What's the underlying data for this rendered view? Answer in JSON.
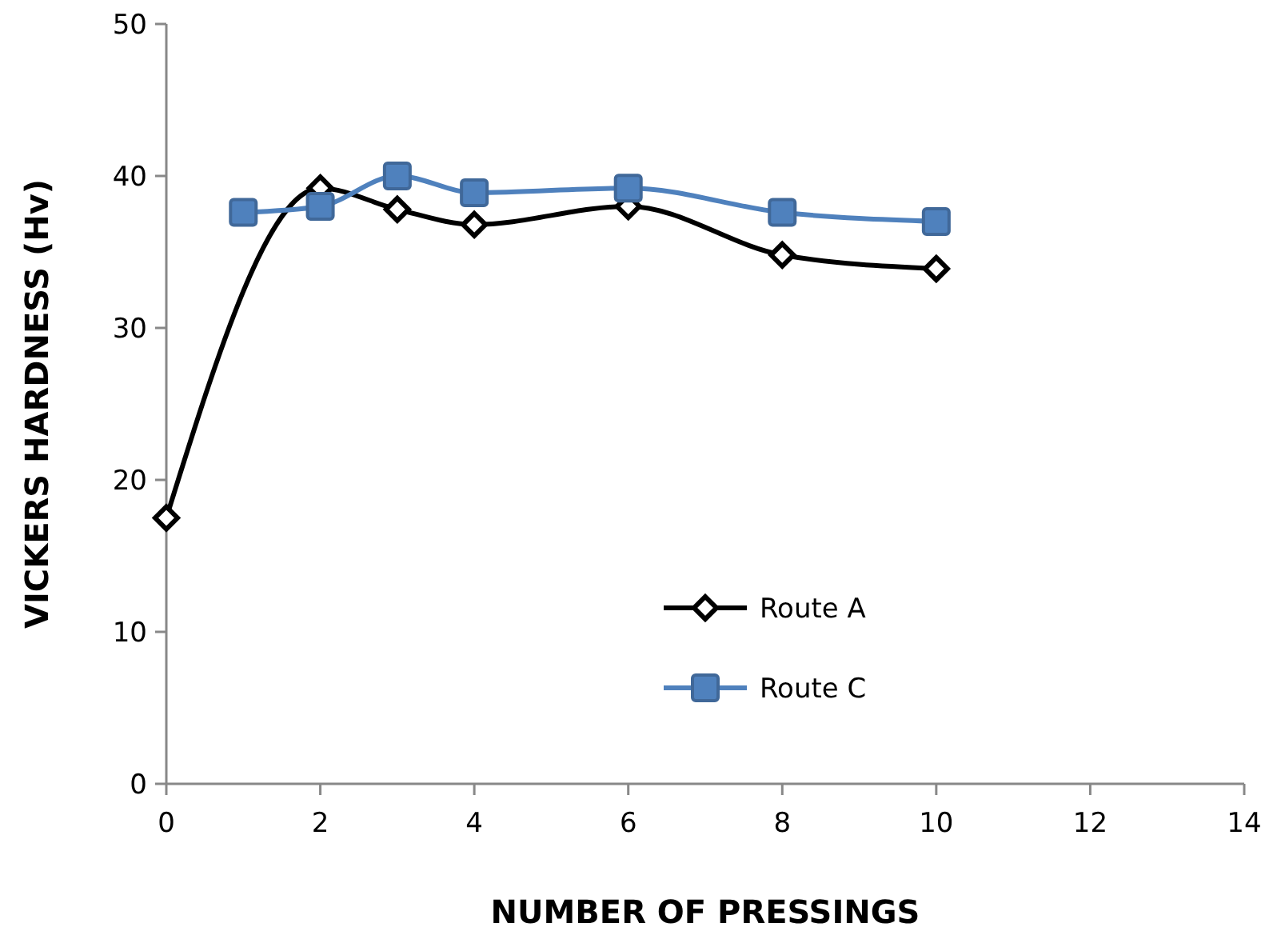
{
  "chart_data": {
    "type": "line",
    "xlabel": "NUMBER OF PRESSINGS",
    "ylabel": "VICKERS HARDNESS (Hv)",
    "xlim": [
      0,
      14
    ],
    "xticks": [
      0,
      2,
      4,
      6,
      8,
      10,
      12,
      14
    ],
    "ylim": [
      0,
      50
    ],
    "yticks": [
      0,
      10,
      20,
      30,
      40,
      50
    ],
    "grid": false,
    "legend": "bottom",
    "line_style": "solid",
    "series": [
      {
        "name": "Route A",
        "color": "#000000",
        "marker": "diamond",
        "x": [
          0,
          1,
          2,
          3,
          4,
          6,
          8,
          10
        ],
        "values": [
          17.5,
          null,
          39.2,
          37.8,
          36.8,
          38,
          34.8,
          33.9
        ]
      },
      {
        "name": "Route C",
        "color": "#4f81bd",
        "marker": "square",
        "x": [
          1,
          2,
          3,
          4,
          6,
          8,
          10
        ],
        "values": [
          37.6,
          38,
          40,
          38.9,
          39.2,
          37.6,
          37
        ]
      }
    ]
  }
}
